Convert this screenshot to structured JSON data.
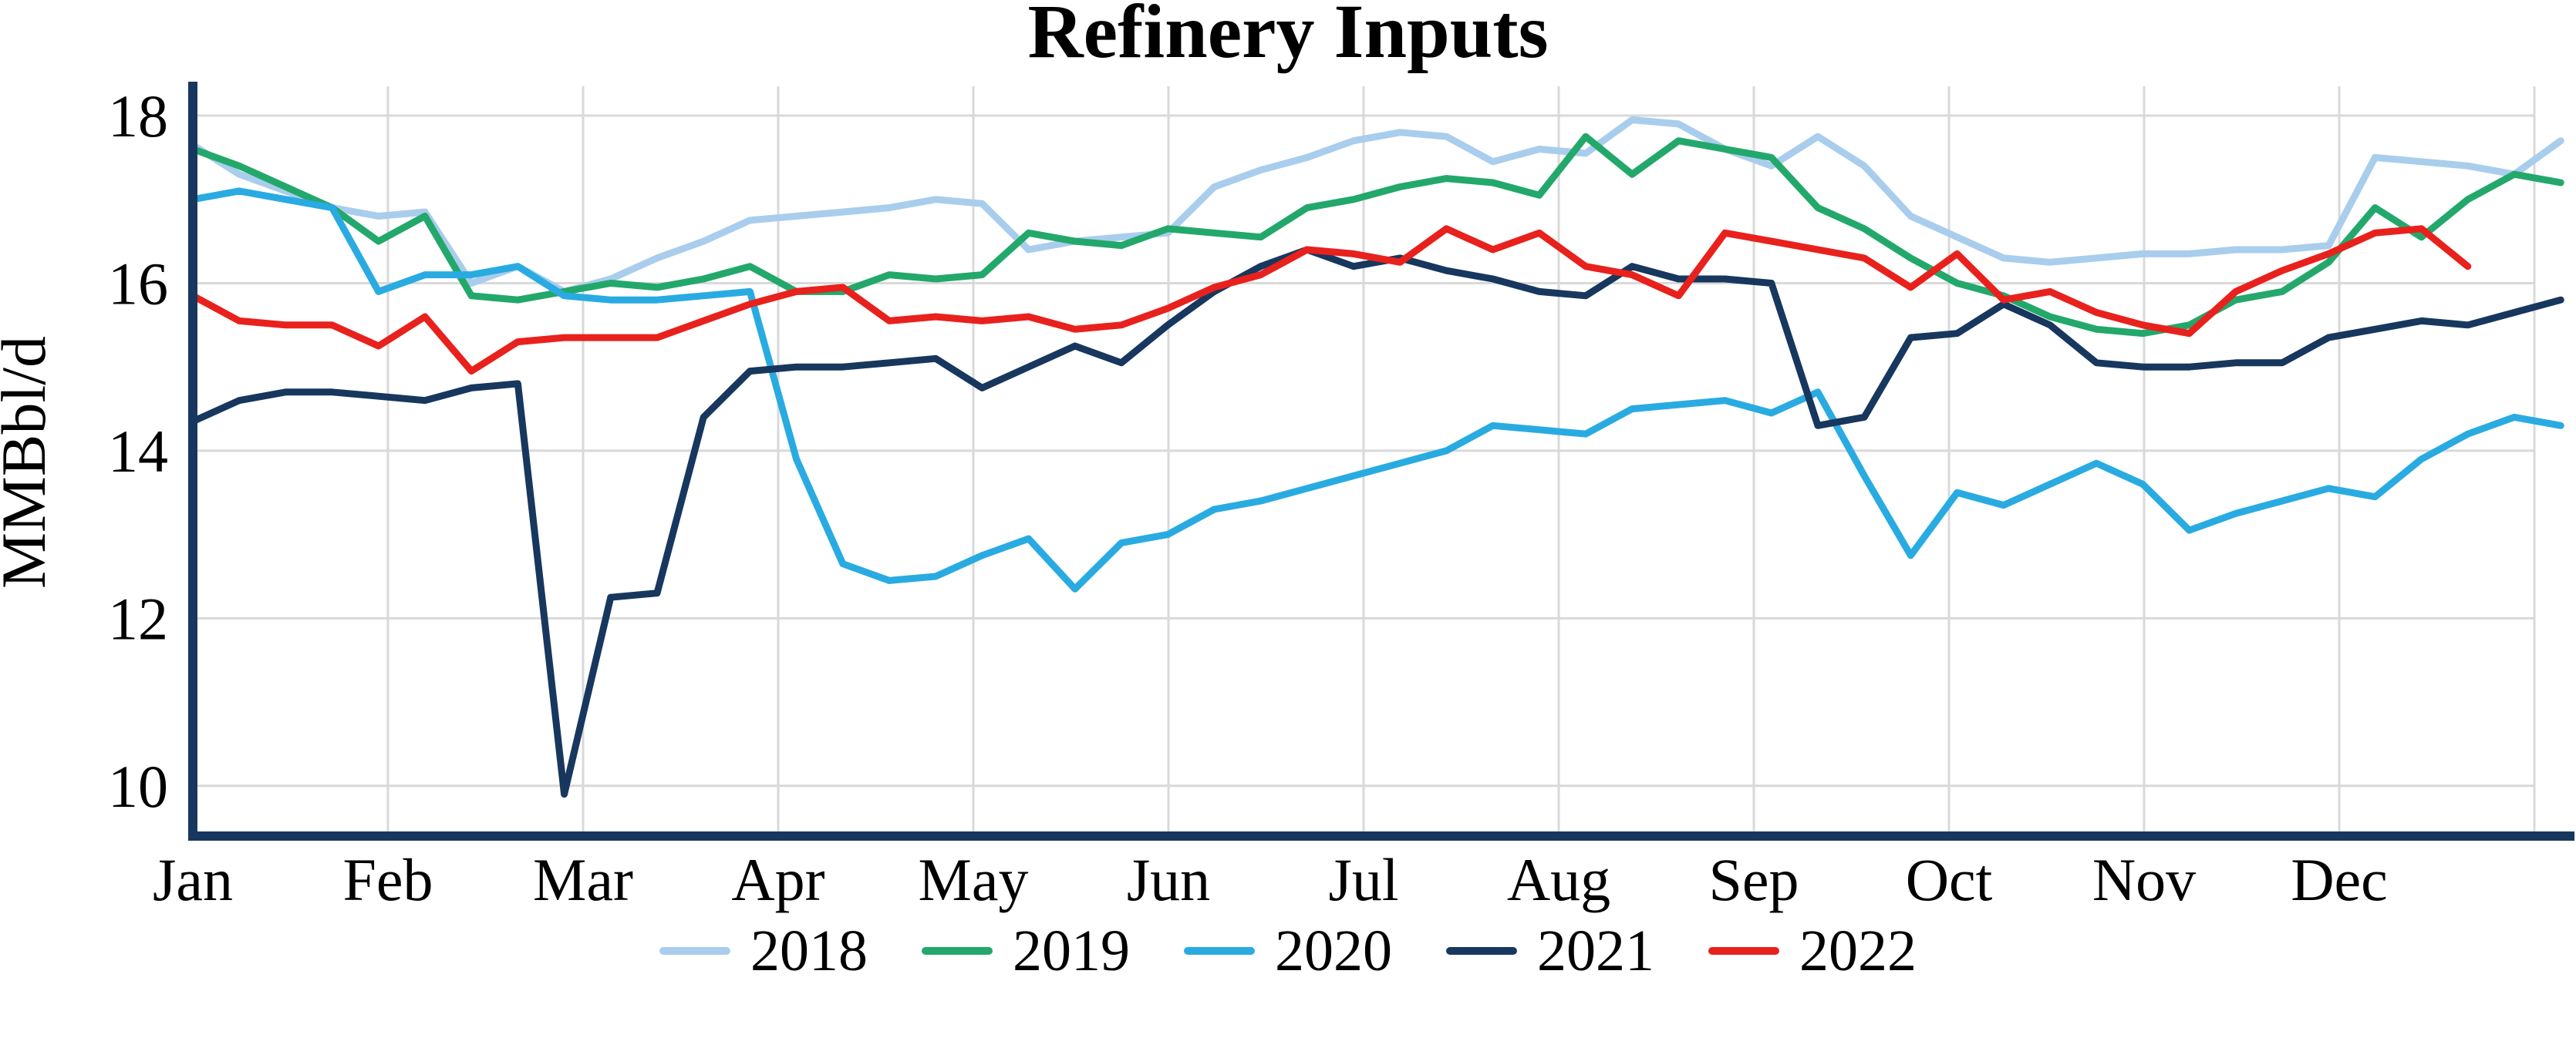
{
  "chart_data": {
    "type": "line",
    "title": "Refinery Inputs",
    "ylabel": "MMBbl/d",
    "xlabel": "",
    "x_frequency": "weekly",
    "x_tick_labels": [
      "Jan",
      "Feb",
      "Mar",
      "Apr",
      "May",
      "Jun",
      "Jul",
      "Aug",
      "Sep",
      "Oct",
      "Nov",
      "Dec"
    ],
    "y_ticks": [
      10,
      12,
      14,
      16,
      18
    ],
    "ylim": [
      9.4,
      18.35
    ],
    "grid": true,
    "legend_position": "bottom",
    "axis_color": "#17375e",
    "grid_color": "#d9d9d9",
    "series": [
      {
        "name": "2018",
        "color": "#a9cdec",
        "values": [
          17.65,
          17.3,
          17.1,
          16.9,
          16.8,
          16.85,
          16.0,
          16.2,
          15.9,
          16.05,
          16.3,
          16.5,
          16.75,
          16.8,
          16.85,
          16.9,
          17.0,
          16.95,
          16.4,
          16.5,
          16.55,
          16.6,
          17.15,
          17.35,
          17.5,
          17.7,
          17.8,
          17.75,
          17.45,
          17.6,
          17.55,
          17.95,
          17.9,
          17.6,
          17.4,
          17.75,
          17.4,
          16.8,
          16.55,
          16.3,
          16.25,
          16.3,
          16.35,
          16.35,
          16.4,
          16.4,
          16.45,
          17.5,
          17.45,
          17.4,
          17.3,
          17.7
        ]
      },
      {
        "name": "2019",
        "color": "#23a86b",
        "values": [
          17.6,
          17.4,
          17.15,
          16.9,
          16.5,
          16.8,
          15.85,
          15.8,
          15.9,
          16.0,
          15.95,
          16.05,
          16.2,
          15.9,
          15.9,
          16.1,
          16.05,
          16.1,
          16.6,
          16.5,
          16.45,
          16.65,
          16.6,
          16.55,
          16.9,
          17.0,
          17.15,
          17.25,
          17.2,
          17.05,
          17.75,
          17.3,
          17.7,
          17.6,
          17.5,
          16.9,
          16.65,
          16.3,
          16.0,
          15.85,
          15.6,
          15.45,
          15.4,
          15.5,
          15.8,
          15.9,
          16.25,
          16.9,
          16.55,
          17.0,
          17.3,
          17.2
        ]
      },
      {
        "name": "2020",
        "color": "#29abe2",
        "values": [
          17.0,
          17.1,
          17.0,
          16.9,
          15.9,
          16.1,
          16.1,
          16.2,
          15.85,
          15.8,
          15.8,
          15.85,
          15.9,
          13.9,
          12.65,
          12.45,
          12.5,
          12.75,
          12.95,
          12.35,
          12.9,
          13.0,
          13.3,
          13.4,
          13.55,
          13.7,
          13.85,
          14.0,
          14.3,
          14.25,
          14.2,
          14.5,
          14.55,
          14.6,
          14.45,
          14.7,
          13.7,
          12.75,
          13.5,
          13.35,
          13.6,
          13.85,
          13.6,
          13.05,
          13.25,
          13.4,
          13.55,
          13.45,
          13.9,
          14.2,
          14.4,
          14.3
        ]
      },
      {
        "name": "2021",
        "color": "#17375e",
        "values": [
          14.35,
          14.6,
          14.7,
          14.7,
          14.65,
          14.6,
          14.75,
          14.8,
          9.9,
          12.25,
          12.3,
          14.4,
          14.95,
          15.0,
          15.0,
          15.05,
          15.1,
          14.75,
          15.0,
          15.25,
          15.05,
          15.5,
          15.9,
          16.2,
          16.4,
          16.2,
          16.3,
          16.15,
          16.05,
          15.9,
          15.85,
          16.2,
          16.05,
          16.05,
          16.0,
          14.3,
          14.4,
          15.35,
          15.4,
          15.75,
          15.5,
          15.05,
          15.0,
          15.0,
          15.05,
          15.05,
          15.35,
          15.45,
          15.55,
          15.5,
          15.65,
          15.8
        ]
      },
      {
        "name": "2022",
        "color": "#e8211d",
        "values": [
          15.85,
          15.55,
          15.5,
          15.5,
          15.25,
          15.6,
          14.95,
          15.3,
          15.35,
          15.35,
          15.35,
          15.55,
          15.75,
          15.9,
          15.95,
          15.55,
          15.6,
          15.55,
          15.6,
          15.45,
          15.5,
          15.7,
          15.95,
          16.1,
          16.4,
          16.35,
          16.25,
          16.65,
          16.4,
          16.6,
          16.2,
          16.1,
          15.85,
          16.6,
          16.5,
          16.4,
          16.3,
          15.95,
          16.35,
          15.8,
          15.9,
          15.65,
          15.5,
          15.4,
          15.9,
          16.15,
          16.35,
          16.6,
          16.65,
          16.2
        ]
      }
    ]
  }
}
